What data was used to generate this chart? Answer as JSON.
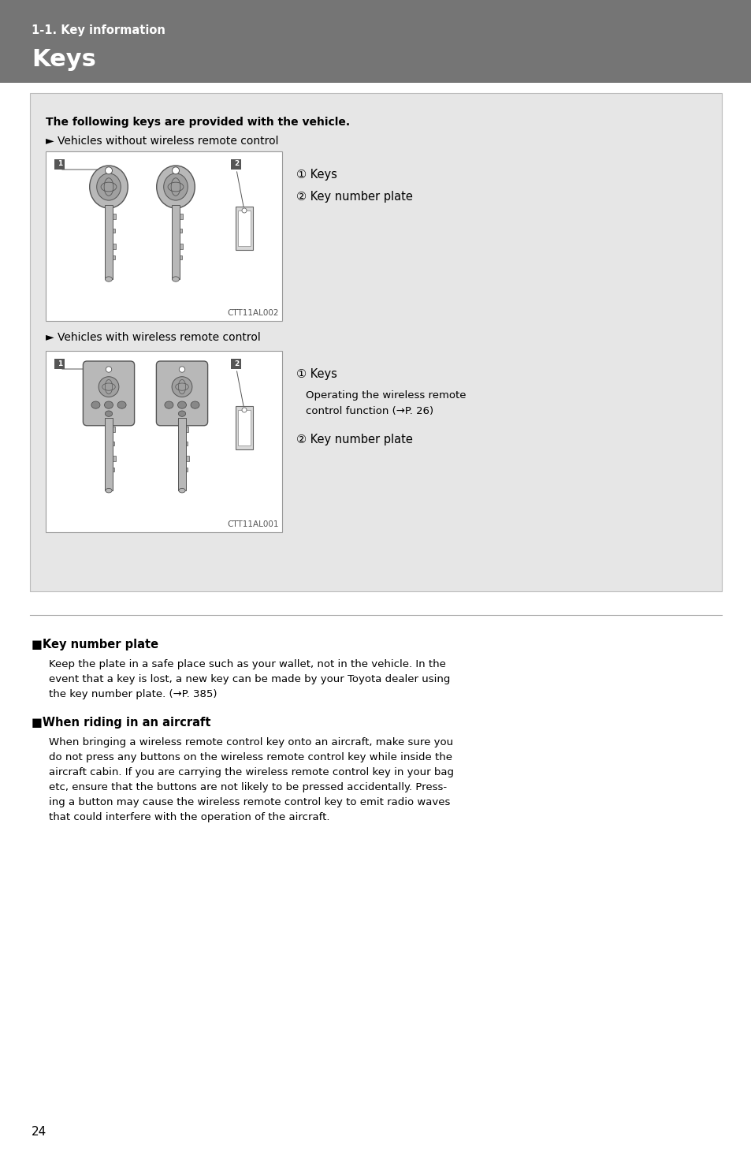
{
  "header_bg": "#757575",
  "header_subtitle": "1-1. Key information",
  "header_title": "Keys",
  "page_bg": "#ffffff",
  "box_bg": "#e6e6e6",
  "box_border": "#bbbbbb",
  "intro_bold": "The following keys are provided with the vehicle.",
  "section1_arrow": "► Vehicles without wireless remote control",
  "section1_img_code": "CTT11AL002",
  "section1_label1": "① Keys",
  "section1_label2": "② Key number plate",
  "section2_arrow": "► Vehicles with wireless remote control",
  "section2_img_code": "CTT11AL001",
  "section2_label1": "① Keys",
  "section2_sub1": "Operating the wireless remote",
  "section2_sub2": "control function (→P. 26)",
  "section2_label2": "② Key number plate",
  "note1_title": "■Key number plate",
  "note1_line1": "Keep the plate in a safe place such as your wallet, not in the vehicle. In the",
  "note1_line2": "event that a key is lost, a new key can be made by your Toyota dealer using",
  "note1_line3": "the key number plate. (→P. 385)",
  "note2_title": "■When riding in an aircraft",
  "note2_line1": "When bringing a wireless remote control key onto an aircraft, make sure you",
  "note2_line2": "do not press any buttons on the wireless remote control key while inside the",
  "note2_line3": "aircraft cabin. If you are carrying the wireless remote control key in your bag",
  "note2_line4": "etc, ensure that the buttons are not likely to be pressed accidentally. Press-",
  "note2_line5": "ing a button may cause the wireless remote control key to emit radio waves",
  "note2_line6": "that could interfere with the operation of the aircraft.",
  "page_number": "24",
  "num_bg": "#555555",
  "num_fg": "#ffffff",
  "fig_width": 9.54,
  "fig_height": 14.75,
  "dpi": 100
}
